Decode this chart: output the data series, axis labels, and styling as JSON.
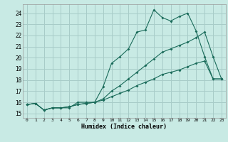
{
  "xlabel": "Humidex (Indice chaleur)",
  "bg_color": "#c8eae4",
  "grid_color": "#a8ccc8",
  "line_color": "#1a6b5a",
  "xlim": [
    -0.5,
    23.5
  ],
  "ylim": [
    14.6,
    24.8
  ],
  "xticks": [
    0,
    1,
    2,
    3,
    4,
    5,
    6,
    7,
    8,
    9,
    10,
    11,
    12,
    13,
    14,
    15,
    16,
    17,
    18,
    19,
    20,
    21,
    22,
    23
  ],
  "yticks": [
    15,
    16,
    17,
    18,
    19,
    20,
    21,
    22,
    23,
    24
  ],
  "line1_x": [
    0,
    1,
    2,
    3,
    4,
    5,
    6,
    7,
    8,
    9,
    10,
    11,
    12,
    13,
    14,
    15,
    16,
    17,
    18,
    19,
    20,
    21,
    22,
    23
  ],
  "line1_y": [
    15.8,
    15.9,
    15.3,
    15.5,
    15.5,
    15.5,
    16.0,
    16.0,
    16.0,
    17.4,
    19.5,
    20.1,
    20.8,
    22.3,
    22.5,
    24.3,
    23.6,
    23.3,
    23.7,
    24.0,
    22.4,
    20.1,
    18.1,
    18.1
  ],
  "line2_x": [
    0,
    1,
    2,
    3,
    4,
    5,
    6,
    7,
    8,
    9,
    10,
    11,
    12,
    13,
    14,
    15,
    16,
    17,
    18,
    19,
    20,
    21,
    22,
    23
  ],
  "line2_y": [
    15.8,
    15.9,
    15.3,
    15.5,
    15.5,
    15.6,
    15.8,
    15.9,
    16.0,
    16.3,
    17.0,
    17.5,
    18.1,
    18.7,
    19.3,
    19.9,
    20.5,
    20.8,
    21.1,
    21.4,
    21.8,
    22.3,
    20.1,
    18.1
  ],
  "line3_x": [
    0,
    1,
    2,
    3,
    4,
    5,
    6,
    7,
    8,
    9,
    10,
    11,
    12,
    13,
    14,
    15,
    16,
    17,
    18,
    19,
    20,
    21,
    22,
    23
  ],
  "line3_y": [
    15.8,
    15.9,
    15.3,
    15.5,
    15.5,
    15.6,
    15.8,
    15.9,
    16.0,
    16.2,
    16.5,
    16.8,
    17.1,
    17.5,
    17.8,
    18.1,
    18.5,
    18.7,
    18.9,
    19.2,
    19.5,
    19.7,
    18.1,
    18.1
  ]
}
